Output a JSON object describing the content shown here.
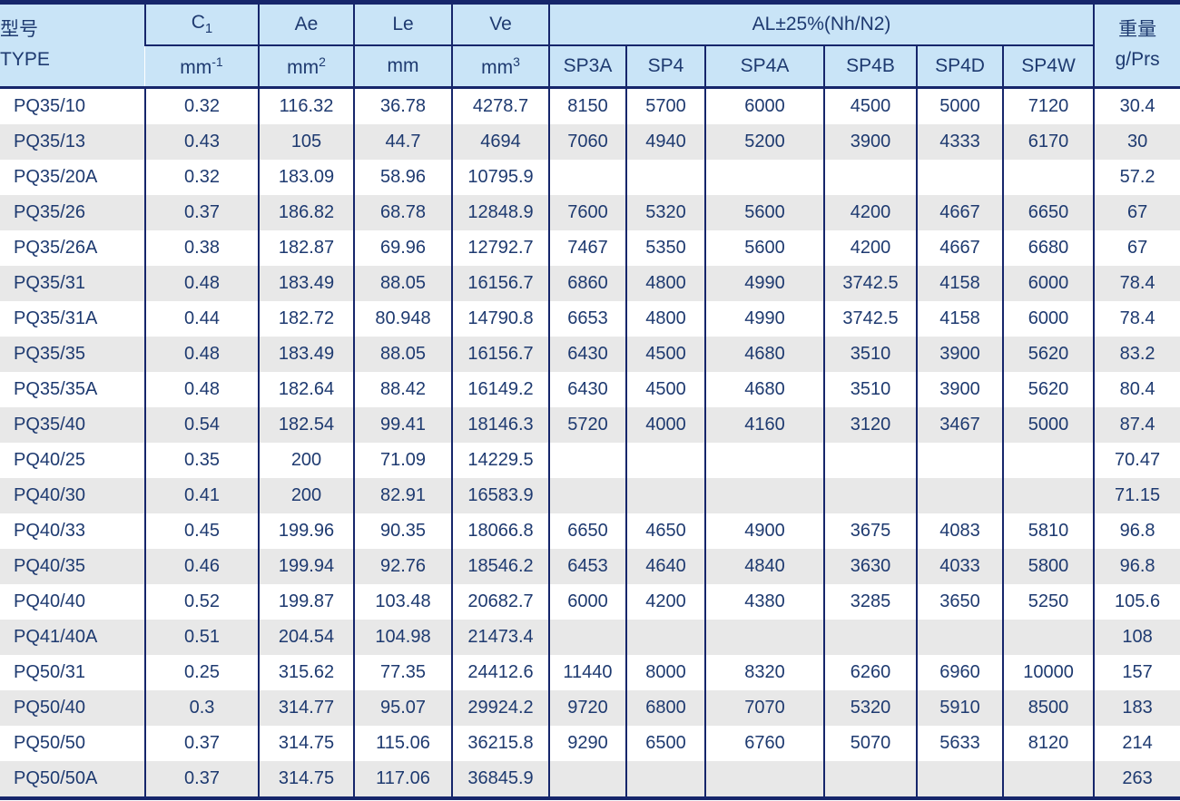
{
  "colors": {
    "border_navy": "#16266b",
    "header_blue": "#c9e4f7",
    "row_alt_gray": "#e8e8e8",
    "text_navy": "#1e3a70"
  },
  "table": {
    "header": {
      "type_label_cn": "型号",
      "type_label_en": "TYPE",
      "c1_base": "C",
      "c1_sub": "1",
      "c1_unit_base": "mm",
      "c1_unit_sup": "-1",
      "ae_label": "Ae",
      "ae_unit_base": "mm",
      "ae_unit_sup": "2",
      "le_label": "Le",
      "le_unit_base": "mm",
      "ve_label": "Ve",
      "ve_unit_base": "mm",
      "ve_unit_sup": "3",
      "al_group_label": "AL±25%(Nh/N2)",
      "sp_columns": [
        "SP3A",
        "SP4",
        "SP4A",
        "SP4B",
        "SP4D",
        "SP4W"
      ],
      "weight_label_cn": "重量",
      "weight_unit": "g/Prs"
    },
    "rows": [
      [
        "PQ35/10",
        "0.32",
        "116.32",
        "36.78",
        "4278.7",
        "8150",
        "5700",
        "6000",
        "4500",
        "5000",
        "7120",
        "30.4"
      ],
      [
        "PQ35/13",
        "0.43",
        "105",
        "44.7",
        "4694",
        "7060",
        "4940",
        "5200",
        "3900",
        "4333",
        "6170",
        "30"
      ],
      [
        "PQ35/20A",
        "0.32",
        "183.09",
        "58.96",
        "10795.9",
        "",
        "",
        "",
        "",
        "",
        "",
        "57.2"
      ],
      [
        "PQ35/26",
        "0.37",
        "186.82",
        "68.78",
        "12848.9",
        "7600",
        "5320",
        "5600",
        "4200",
        "4667",
        "6650",
        "67"
      ],
      [
        "PQ35/26A",
        "0.38",
        "182.87",
        "69.96",
        "12792.7",
        "7467",
        "5350",
        "5600",
        "4200",
        "4667",
        "6680",
        "67"
      ],
      [
        "PQ35/31",
        "0.48",
        "183.49",
        "88.05",
        "16156.7",
        "6860",
        "4800",
        "4990",
        "3742.5",
        "4158",
        "6000",
        "78.4"
      ],
      [
        "PQ35/31A",
        "0.44",
        "182.72",
        "80.948",
        "14790.8",
        "6653",
        "4800",
        "4990",
        "3742.5",
        "4158",
        "6000",
        "78.4"
      ],
      [
        "PQ35/35",
        "0.48",
        "183.49",
        "88.05",
        "16156.7",
        "6430",
        "4500",
        "4680",
        "3510",
        "3900",
        "5620",
        "83.2"
      ],
      [
        "PQ35/35A",
        "0.48",
        "182.64",
        "88.42",
        "16149.2",
        "6430",
        "4500",
        "4680",
        "3510",
        "3900",
        "5620",
        "80.4"
      ],
      [
        "PQ35/40",
        "0.54",
        "182.54",
        "99.41",
        "18146.3",
        "5720",
        "4000",
        "4160",
        "3120",
        "3467",
        "5000",
        "87.4"
      ],
      [
        "PQ40/25",
        "0.35",
        "200",
        "71.09",
        "14229.5",
        "",
        "",
        "",
        "",
        "",
        "",
        "70.47"
      ],
      [
        "PQ40/30",
        "0.41",
        "200",
        "82.91",
        "16583.9",
        "",
        "",
        "",
        "",
        "",
        "",
        "71.15"
      ],
      [
        "PQ40/33",
        "0.45",
        "199.96",
        "90.35",
        "18066.8",
        "6650",
        "4650",
        "4900",
        "3675",
        "4083",
        "5810",
        "96.8"
      ],
      [
        "PQ40/35",
        "0.46",
        "199.94",
        "92.76",
        "18546.2",
        "6453",
        "4640",
        "4840",
        "3630",
        "4033",
        "5800",
        "96.8"
      ],
      [
        "PQ40/40",
        "0.52",
        "199.87",
        "103.48",
        "20682.7",
        "6000",
        "4200",
        "4380",
        "3285",
        "3650",
        "5250",
        "105.6"
      ],
      [
        "PQ41/40A",
        "0.51",
        "204.54",
        "104.98",
        "21473.4",
        "",
        "",
        "",
        "",
        "",
        "",
        "108"
      ],
      [
        "PQ50/31",
        "0.25",
        "315.62",
        "77.35",
        "24412.6",
        "11440",
        "8000",
        "8320",
        "6260",
        "6960",
        "10000",
        "157"
      ],
      [
        "PQ50/40",
        "0.3",
        "314.77",
        "95.07",
        "29924.2",
        "9720",
        "6800",
        "7070",
        "5320",
        "5910",
        "8500",
        "183"
      ],
      [
        "PQ50/50",
        "0.37",
        "314.75",
        "115.06",
        "36215.8",
        "9290",
        "6500",
        "6760",
        "5070",
        "5633",
        "8120",
        "214"
      ],
      [
        "PQ50/50A",
        "0.37",
        "314.75",
        "117.06",
        "36845.9",
        "",
        "",
        "",
        "",
        "",
        "",
        "263"
      ]
    ]
  }
}
